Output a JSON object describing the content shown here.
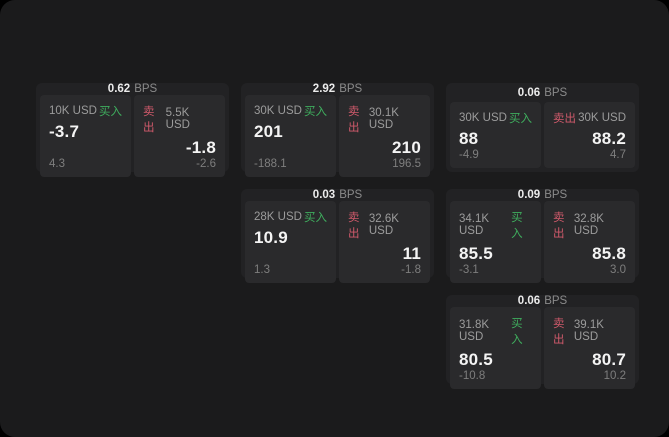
{
  "labels": {
    "bps_unit": "BPS",
    "buy": "买入",
    "sell": "卖出"
  },
  "colors": {
    "buy": "#3fae5e",
    "sell": "#d05a6b",
    "page_background": "#1b1b1c",
    "card_background": "#222224",
    "panel_background": "#2a2a2c"
  },
  "cards": [
    {
      "bps": "0.62",
      "buy": {
        "amount": "10K USD",
        "price": "-3.7",
        "delta": "4.3"
      },
      "sell": {
        "amount": "5.5K USD",
        "price": "-1.8",
        "delta": "-2.6"
      }
    },
    {
      "bps": "2.92",
      "buy": {
        "amount": "30K USD",
        "price": "201",
        "delta": "-188.1"
      },
      "sell": {
        "amount": "30.1K USD",
        "price": "210",
        "delta": "196.5"
      }
    },
    {
      "bps": "0.06",
      "buy": {
        "amount": "30K USD",
        "price": "88",
        "delta": "-4.9"
      },
      "sell": {
        "amount": "30K USD",
        "price": "88.2",
        "delta": "4.7"
      }
    },
    {
      "bps": "0.03",
      "buy": {
        "amount": "28K USD",
        "price": "10.9",
        "delta": "1.3"
      },
      "sell": {
        "amount": "32.6K USD",
        "price": "11",
        "delta": "-1.8"
      }
    },
    {
      "bps": "0.09",
      "buy": {
        "amount": "34.1K USD",
        "price": "85.5",
        "delta": "-3.1"
      },
      "sell": {
        "amount": "32.8K USD",
        "price": "85.8",
        "delta": "3.0"
      }
    },
    {
      "bps": "0.06",
      "buy": {
        "amount": "31.8K USD",
        "price": "80.5",
        "delta": "-10.8"
      },
      "sell": {
        "amount": "39.1K USD",
        "price": "80.7",
        "delta": "10.2"
      }
    }
  ]
}
